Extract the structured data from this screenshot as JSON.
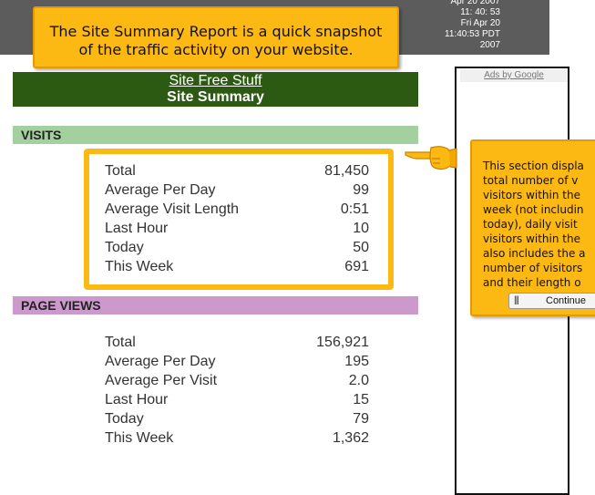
{
  "topbar": {
    "date_lines": [
      "Apr 20 2007",
      "11: 40: 53",
      "Fri Apr 20",
      "11:40:53 PDT",
      "2007"
    ]
  },
  "callout_top": {
    "lines": [
      "The Site Summary Report is a quick snapshot",
      "of the traffic activity on your website."
    ]
  },
  "header": {
    "link": "Site Free Stuff",
    "title": "Site Summary"
  },
  "visits": {
    "heading": "VISITS",
    "rows": [
      {
        "label": "Total",
        "value": "81,450"
      },
      {
        "label": "Average Per Day",
        "value": "99"
      },
      {
        "label": "Average Visit Length",
        "value": "0:51"
      },
      {
        "label": "Last Hour",
        "value": "10"
      },
      {
        "label": "Today",
        "value": "50"
      },
      {
        "label": "This Week",
        "value": "691"
      }
    ]
  },
  "page_views": {
    "heading": "PAGE VIEWS",
    "rows": [
      {
        "label": "Total",
        "value": "156,921"
      },
      {
        "label": "Average Per Day",
        "value": "195"
      },
      {
        "label": "Average Per Visit",
        "value": "2.0"
      },
      {
        "label": "Last Hour",
        "value": "15"
      },
      {
        "label": "Today",
        "value": "79"
      },
      {
        "label": "This Week",
        "value": "1,362"
      }
    ]
  },
  "ads": {
    "label": "Ads by Google"
  },
  "callout_side": {
    "lines": [
      "This section displa",
      "total number of v",
      "visitors within the",
      "week (not includin",
      "today), daily visit",
      "visitors within the",
      "also includes the a",
      "number of visitors",
      "and their length o"
    ],
    "button_label": "Continue",
    "button_icon": "pause-bars-icon"
  },
  "colors": {
    "header_green": "#2d5a12",
    "visits_bar": "#a3d09e",
    "pageviews_bar": "#cc99cc",
    "callout_yellow": "#fdb913",
    "topbar_gray": "#5c5c5c"
  }
}
